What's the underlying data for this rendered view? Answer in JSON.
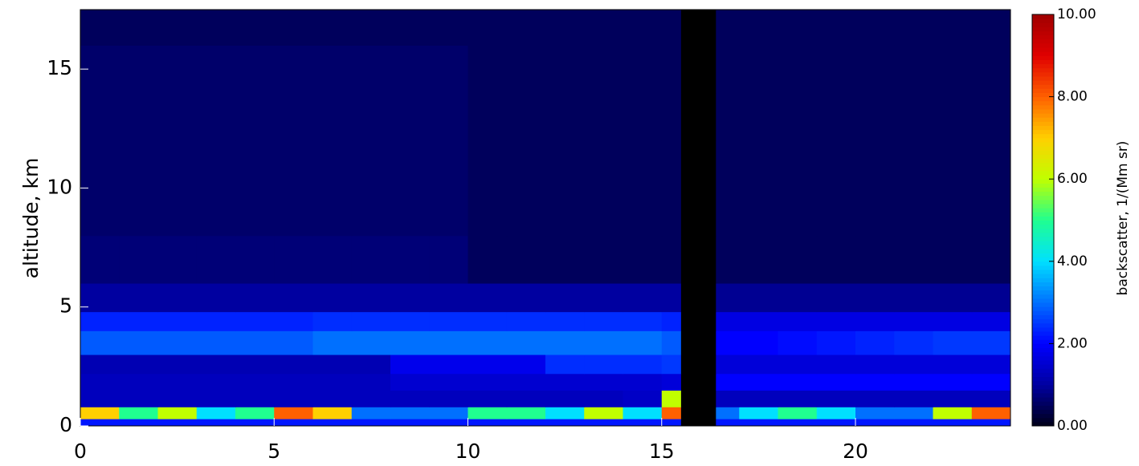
{
  "chart_data": {
    "type": "heatmap",
    "ylabel": "altitude, km",
    "colorbar_label": "backscatter, 1/(Mm sr)",
    "x_bins": [
      0,
      1,
      2,
      3,
      4,
      5,
      6,
      7,
      8,
      9,
      10,
      11,
      12,
      13,
      14,
      15,
      15.5,
      16.4,
      17,
      18,
      19,
      20,
      21,
      22,
      23,
      24
    ],
    "y_bins": [
      0,
      0.3,
      0.8,
      1.5,
      2.2,
      3,
      4,
      4.8,
      6,
      8,
      10,
      12,
      14,
      16,
      17.5
    ],
    "values": [
      [
        2.2,
        2.2,
        2.2,
        2.2,
        2.2,
        2.2,
        2.2,
        2.2,
        2.2,
        2.2,
        2.2,
        2.2,
        2.2,
        2.2,
        2.2,
        2.2,
        null,
        2.2,
        2.2,
        2.2,
        2.2,
        2.2,
        2.2,
        2.2,
        2.2
      ],
      [
        7,
        5,
        6,
        4,
        5,
        8,
        7,
        3,
        3,
        3,
        5,
        5,
        4,
        6,
        4,
        8,
        null,
        3,
        4,
        5,
        4,
        3,
        3,
        6,
        8
      ],
      [
        1.3,
        1.3,
        1.3,
        1.3,
        1.3,
        1.3,
        1.3,
        1.3,
        1.3,
        1.3,
        1.3,
        1.3,
        1.3,
        1.3,
        1.4,
        6,
        null,
        1.3,
        1.3,
        1.3,
        1.3,
        1.3,
        1.3,
        1.3,
        1.3
      ],
      [
        1.3,
        1.3,
        1.3,
        1.3,
        1.3,
        1.3,
        1.3,
        1.3,
        1.5,
        1.5,
        1.5,
        1.5,
        1.5,
        1.5,
        1.5,
        1.6,
        null,
        2,
        2,
        2,
        2,
        2,
        2,
        2,
        2
      ],
      [
        1.2,
        1.2,
        1.2,
        1.2,
        1.2,
        1.2,
        1.2,
        1.2,
        1.8,
        1.8,
        1.8,
        1.8,
        2.4,
        2.4,
        2.4,
        2.5,
        null,
        1.6,
        1.6,
        1.6,
        1.6,
        1.6,
        1.6,
        1.6,
        1.6
      ],
      [
        2.8,
        2.8,
        2.8,
        2.8,
        2.8,
        2.8,
        3,
        3,
        3,
        3,
        3,
        3,
        3,
        3,
        3,
        2.8,
        null,
        2,
        2,
        2.1,
        2.2,
        2.3,
        2.4,
        2.5,
        2.5
      ],
      [
        2.3,
        2.3,
        2.3,
        2.3,
        2.3,
        2.3,
        2.4,
        2.4,
        2.4,
        2.4,
        2.4,
        2.4,
        2.4,
        2.4,
        2.4,
        2.3,
        null,
        1.7,
        1.7,
        1.7,
        1.7,
        1.7,
        1.7,
        1.7,
        1.7
      ],
      [
        1,
        1,
        1,
        1,
        1,
        1,
        1,
        1,
        1,
        1,
        1,
        1,
        1,
        1,
        1,
        1,
        null,
        0.9,
        0.9,
        0.9,
        0.9,
        0.9,
        0.9,
        0.9,
        0.9
      ],
      [
        0.7,
        0.7,
        0.7,
        0.7,
        0.7,
        0.7,
        0.7,
        0.7,
        0.7,
        0.7,
        0.5,
        0.5,
        0.5,
        0.5,
        0.5,
        0.5,
        null,
        0.5,
        0.5,
        0.5,
        0.5,
        0.5,
        0.5,
        0.5,
        0.5
      ],
      [
        0.6,
        0.6,
        0.6,
        0.6,
        0.6,
        0.6,
        0.6,
        0.6,
        0.6,
        0.6,
        0.5,
        0.5,
        0.5,
        0.5,
        0.5,
        0.5,
        null,
        0.5,
        0.5,
        0.5,
        0.5,
        0.5,
        0.5,
        0.5,
        0.5
      ],
      [
        0.6,
        0.6,
        0.6,
        0.6,
        0.6,
        0.6,
        0.6,
        0.6,
        0.6,
        0.6,
        0.5,
        0.5,
        0.5,
        0.5,
        0.5,
        0.5,
        null,
        0.5,
        0.5,
        0.5,
        0.5,
        0.5,
        0.5,
        0.5,
        0.5
      ],
      [
        0.6,
        0.6,
        0.6,
        0.6,
        0.6,
        0.6,
        0.6,
        0.6,
        0.6,
        0.6,
        0.5,
        0.5,
        0.5,
        0.5,
        0.5,
        0.5,
        null,
        0.5,
        0.5,
        0.5,
        0.5,
        0.5,
        0.5,
        0.5,
        0.5
      ],
      [
        0.6,
        0.6,
        0.6,
        0.6,
        0.6,
        0.6,
        0.6,
        0.6,
        0.6,
        0.6,
        0.5,
        0.5,
        0.5,
        0.5,
        0.5,
        0.5,
        null,
        0.5,
        0.5,
        0.5,
        0.5,
        0.5,
        0.5,
        0.5,
        0.5
      ],
      [
        0.5,
        0.5,
        0.5,
        0.5,
        0.5,
        0.5,
        0.5,
        0.5,
        0.5,
        0.5,
        0.5,
        0.5,
        0.5,
        0.5,
        0.5,
        0.5,
        null,
        0.5,
        0.5,
        0.5,
        0.5,
        0.5,
        0.5,
        0.5,
        0.5
      ]
    ],
    "xlim": [
      0,
      24
    ],
    "ylim": [
      0,
      17.5
    ],
    "xticks": [
      0,
      5,
      10,
      15,
      20
    ],
    "yticks": [
      0,
      5,
      10,
      15
    ],
    "clim": [
      0,
      10
    ],
    "cticks": [
      {
        "value": 0,
        "label": "0.00"
      },
      {
        "value": 2,
        "label": "2.00"
      },
      {
        "value": 4,
        "label": "4.00"
      },
      {
        "value": 6,
        "label": "6.00"
      },
      {
        "value": 8,
        "label": "8.00"
      },
      {
        "value": 10,
        "label": "10.00"
      }
    ],
    "colorscale": [
      "#000018",
      "#0000a0",
      "#0000ff",
      "#0070ff",
      "#00e0ff",
      "#20ff90",
      "#c0ff00",
      "#ffd000",
      "#ff6000",
      "#e00000",
      "#a00000"
    ],
    "null_color": "#000000"
  }
}
